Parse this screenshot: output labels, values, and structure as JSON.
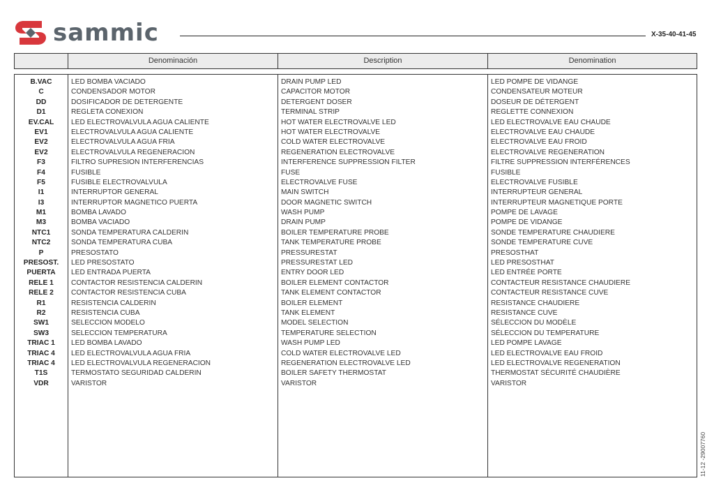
{
  "header": {
    "brand": "sammic",
    "doc_code": "X-35-40-41-45"
  },
  "columns": [
    "",
    "Denominación",
    "Description",
    "Denomination"
  ],
  "rows": [
    [
      "B.VAC",
      "LED BOMBA VACIADO",
      "DRAIN PUMP LED",
      "LED POMPE DE VIDANGE"
    ],
    [
      "C",
      "CONDENSADOR MOTOR",
      "CAPACITOR MOTOR",
      "CONDENSATEUR MOTEUR"
    ],
    [
      "DD",
      "DOSIFICADOR DE DETERGENTE",
      "DETERGENT DOSER",
      "DOSEUR DE DÉTERGENT"
    ],
    [
      "D1",
      "REGLETA CONEXION",
      "TERMINAL STRIP",
      "REGLETTE CONNEXION"
    ],
    [
      "EV.CAL",
      "LED ELECTROVALVULA AGUA CALIENTE",
      "HOT WATER ELECTROVALVE LED",
      "LED ELECTROVALVE EAU CHAUDE"
    ],
    [
      "EV1",
      "ELECTROVALVULA AGUA CALIENTE",
      "HOT WATER ELECTROVALVE",
      "ELECTROVALVE EAU CHAUDE"
    ],
    [
      "EV2",
      "ELECTROVALVULA AGUA FRIA",
      "COLD WATER ELECTROVALVE",
      "ELECTROVALVE EAU FROID"
    ],
    [
      "EV2",
      "ELECTROVALVULA REGENERACION",
      "REGENERATION ELECTROVALVE",
      "ELECTROVALVE REGENERATION"
    ],
    [
      "F3",
      "FILTRO SUPRESION INTERFERENCIAS",
      "INTERFERENCE SUPPRESSION FILTER",
      "FILTRE SUPPRESSION INTERFÉRENCES"
    ],
    [
      "F4",
      "FUSIBLE",
      "FUSE",
      "FUSIBLE"
    ],
    [
      "F5",
      "FUSIBLE ELECTROVALVULA",
      "ELECTROVALVE FUSE",
      "ELECTROVALVE FUSIBLE"
    ],
    [
      "I1",
      "INTERRUPTOR GENERAL",
      "MAIN SWITCH",
      "INTERRUPTEUR GENERAL"
    ],
    [
      "I3",
      "INTERRUPTOR MAGNETICO PUERTA",
      "DOOR MAGNETIC SWITCH",
      "INTERRUPTEUR MAGNETIQUE PORTE"
    ],
    [
      "M1",
      "BOMBA LAVADO",
      "WASH PUMP",
      "POMPE DE LAVAGE"
    ],
    [
      "M3",
      "BOMBA VACIADO",
      "DRAIN PUMP",
      "POMPE DE VIDANGE"
    ],
    [
      "NTC1",
      "SONDA TEMPERATURA CALDERIN",
      "BOILER TEMPERATURE PROBE",
      "SONDE TEMPERATURE CHAUDIERE"
    ],
    [
      "NTC2",
      "SONDA TEMPERATURA CUBA",
      "TANK TEMPERATURE PROBE",
      "SONDE TEMPERATURE CUVE"
    ],
    [
      "P",
      "PRESOSTATO",
      "PRESSURESTAT",
      "PRESOSTHAT"
    ],
    [
      "PRESOST.",
      "LED PRESOSTATO",
      "PRESSURESTAT LED",
      "LED PRESOSTHAT"
    ],
    [
      "PUERTA",
      "LED ENTRADA PUERTA",
      "ENTRY DOOR LED",
      "LED ENTRÉE PORTE"
    ],
    [
      "RELE 1",
      "CONTACTOR RESISTENCIA CALDERIN",
      "BOILER ELEMENT  CONTACTOR",
      "CONTACTEUR RESISTANCE CHAUDIERE"
    ],
    [
      "RELE 2",
      "CONTACTOR RESISTENCIA CUBA",
      "TANK ELEMENT CONTACTOR",
      "CONTACTEUR RESISTANCE CUVE"
    ],
    [
      "R1",
      "RESISTENCIA CALDERIN",
      "BOILER ELEMENT",
      "RESISTANCE CHAUDIERE"
    ],
    [
      "R2",
      "RESISTENCIA CUBA",
      "TANK ELEMENT",
      "RESISTANCE CUVE"
    ],
    [
      "SW1",
      "SELECCION MODELO",
      "MODEL SELECTION",
      "SÉLECCION DU MODÈLE"
    ],
    [
      "SW3",
      "SELECCION TEMPERATURA",
      "TEMPERATURE  SELECTION",
      "SÉLECCION DU TEMPERATURE"
    ],
    [
      "TRIAC 1",
      "LED BOMBA LAVADO",
      "WASH PUMP LED",
      "LED POMPE LAVAGE"
    ],
    [
      "TRIAC 4",
      "LED ELECTROVALVULA AGUA FRIA",
      "COLD WATER ELECTROVALVE LED",
      "LED ELECTROVALVE EAU FROID"
    ],
    [
      "TRIAC 4",
      "LED ELECTROVALVULA REGENERACION",
      "REGENERATION ELECTROVALVE LED",
      "LED ELECTROVALVE REGENERATION"
    ],
    [
      "T1S",
      "TERMOSTATO SEGURIDAD CALDERIN",
      "BOILER SAFETY THERMOSTAT",
      "THERMOSTAT SÉCURITÉ CHAUDIÈRE"
    ],
    [
      "VDR",
      "VARISTOR",
      "VARISTOR",
      "VARISTOR"
    ]
  ],
  "footer": {
    "side_code": "11-12 -29007760"
  },
  "colors": {
    "logo_red": "#d8373c",
    "logo_gray": "#5b646c",
    "header_bg": "#ececec"
  }
}
